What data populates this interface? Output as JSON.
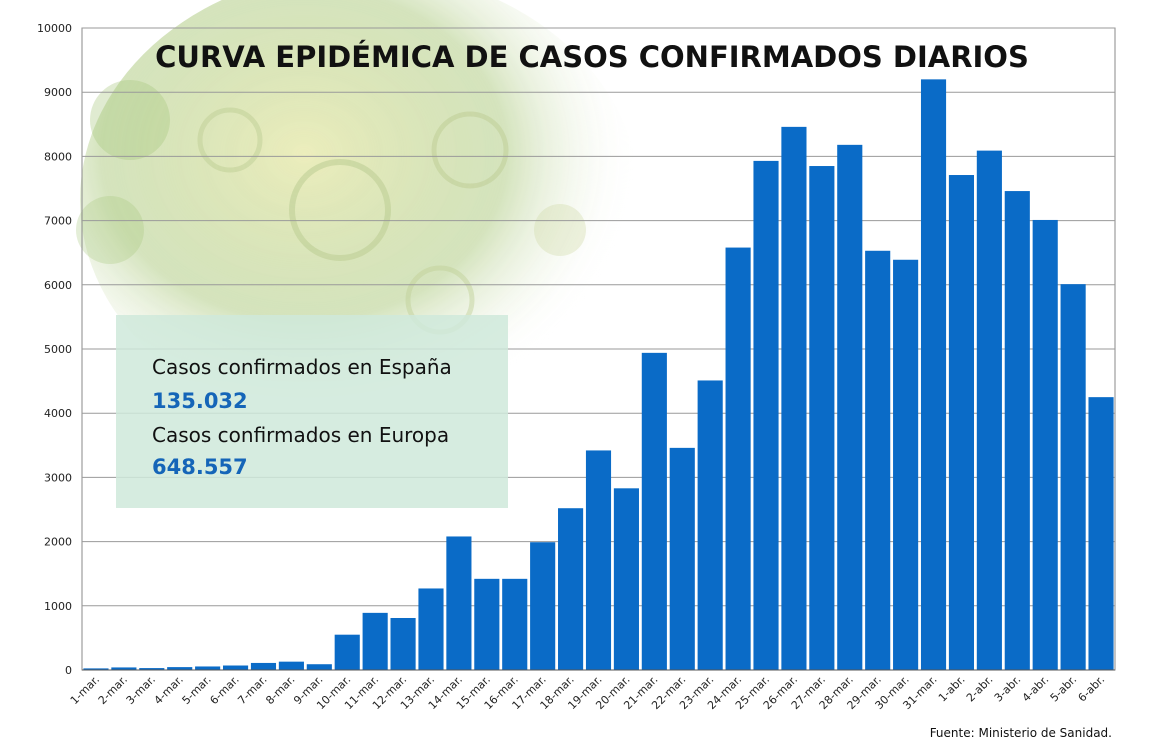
{
  "colors": {
    "bar": "#0a6bc7",
    "grid": "#9a9a9a",
    "panel": "#d6eee0",
    "value_text": "#1565b8"
  },
  "source": "Fuente: Ministerio de Sanidad.",
  "info_panel": {
    "spain_label": "Casos confirmados en España",
    "spain_value": "135.032",
    "europe_label": "Casos confirmados en Europa",
    "europe_value": "648.557"
  },
  "chart_data": {
    "type": "bar",
    "title": "CURVA EPIDÉMICA DE CASOS CONFIRMADOS DIARIOS",
    "xlabel": "",
    "ylabel": "",
    "ylim": [
      0,
      10000
    ],
    "yticks": [
      0,
      1000,
      2000,
      3000,
      4000,
      5000,
      6000,
      7000,
      8000,
      9000,
      10000
    ],
    "grid": true,
    "categories": [
      "1-mar.",
      "2-mar.",
      "3-mar.",
      "4-mar.",
      "5-mar.",
      "6-mar.",
      "7-mar.",
      "8-mar.",
      "9-mar.",
      "10-mar.",
      "11-mar.",
      "12-mar.",
      "13-mar.",
      "14-mar.",
      "15-mar.",
      "16-mar.",
      "17-mar.",
      "18-mar.",
      "19-mar.",
      "20-mar.",
      "21-mar.",
      "22-mar.",
      "23-mar.",
      "24-mar.",
      "25-mar.",
      "26-mar.",
      "27-mar.",
      "28-mar.",
      "29-mar.",
      "30-mar.",
      "31-mar.",
      "1-abr.",
      "2-abr.",
      "3-abr.",
      "4-abr.",
      "5-abr.",
      "6-abr."
    ],
    "values": [
      25,
      40,
      30,
      45,
      55,
      70,
      110,
      130,
      90,
      550,
      890,
      810,
      1270,
      2080,
      1420,
      1420,
      1990,
      2520,
      3420,
      2830,
      4940,
      3460,
      4510,
      6580,
      7930,
      8460,
      7850,
      8180,
      6530,
      6390,
      9200,
      7710,
      8090,
      7460,
      7010,
      6010,
      4250
    ]
  }
}
